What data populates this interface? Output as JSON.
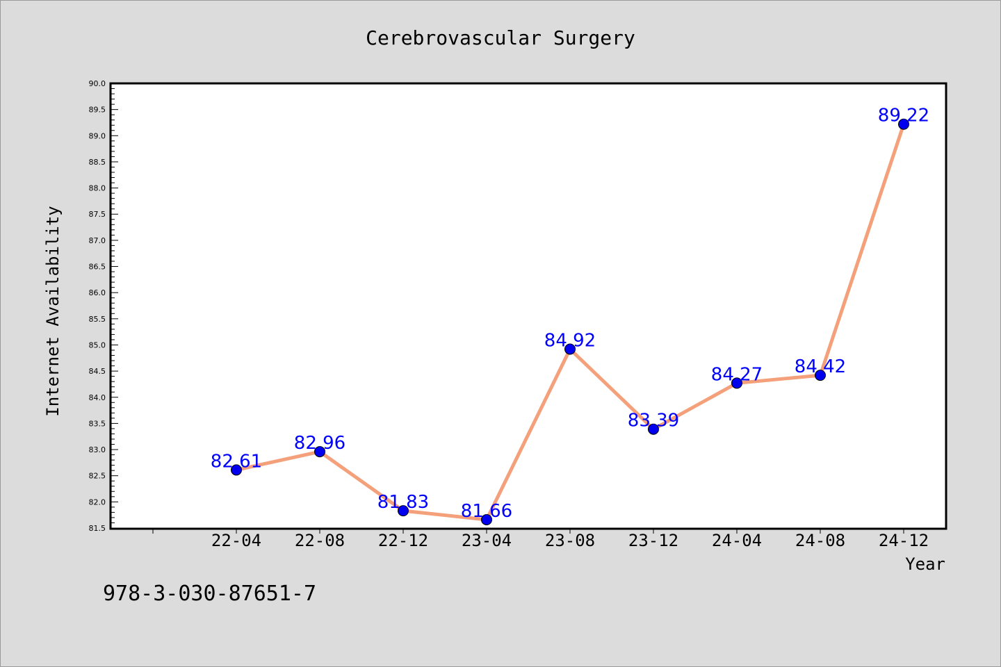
{
  "chart_data": {
    "type": "line",
    "title": "Cerebrovascular Surgery",
    "xlabel": "Year",
    "ylabel": "Internet Availability",
    "categories": [
      "22-04",
      "22-08",
      "22-12",
      "23-04",
      "23-08",
      "23-12",
      "24-04",
      "24-08",
      "24-12"
    ],
    "series": [
      {
        "values": [
          82.61,
          82.96,
          81.83,
          81.66,
          84.92,
          83.39,
          84.27,
          84.42,
          89.22
        ]
      }
    ],
    "data_labels": [
      "82.61",
      "82.96",
      "81.83",
      "81.66",
      "84.92",
      "83.39",
      "84.27",
      "84.42",
      "89.22"
    ],
    "ylim": [
      81.5,
      90.0
    ],
    "yticks": [
      "81.5",
      "82.0",
      "82.5",
      "83.0",
      "83.5",
      "84.0",
      "84.5",
      "85.0",
      "85.5",
      "86.0",
      "86.5",
      "87.0",
      "87.5",
      "88.0",
      "88.5",
      "89.0",
      "89.5",
      "90.0"
    ],
    "grid": false,
    "colors": {
      "line": "#f4a07a",
      "marker": "#0000ee",
      "label": "#0000ff",
      "plot_bg": "#ffffff",
      "page_bg": "#dcdcdc"
    }
  },
  "footnote": "978-3-030-87651-7"
}
